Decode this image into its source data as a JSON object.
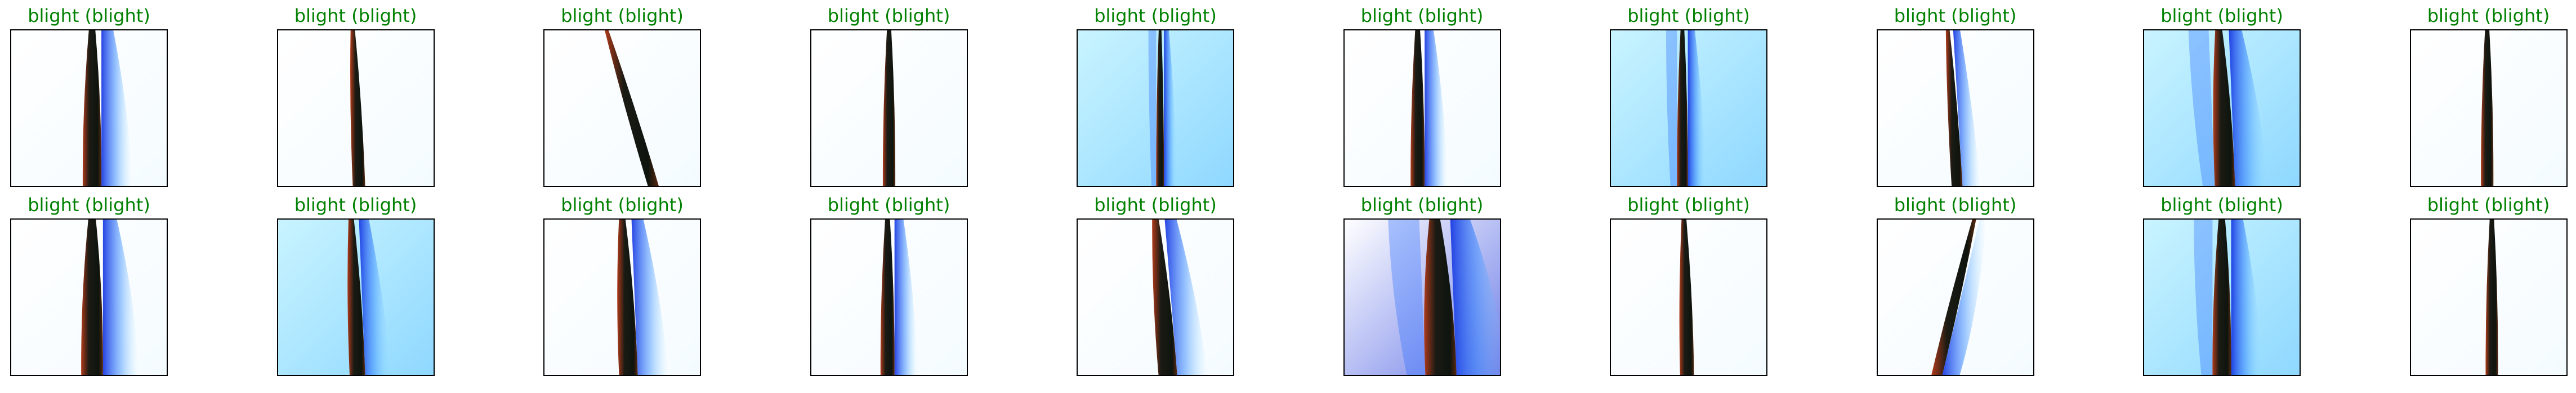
{
  "colors": {
    "correct_label": "#008000",
    "frame": "#000000"
  },
  "predictions": [
    {
      "title": "blight (blight)",
      "fill": "white",
      "leaf_x": 0.52,
      "leaf_w": 0.12,
      "lean": 0.0,
      "glow": "right"
    },
    {
      "title": "blight (blight)",
      "fill": "white",
      "leaf_x": 0.5,
      "leaf_w": 0.08,
      "lean": 0.02,
      "glow": "none"
    },
    {
      "title": "blight (blight)",
      "fill": "white",
      "leaf_x": 0.55,
      "leaf_w": 0.07,
      "lean": 0.15,
      "glow": "none"
    },
    {
      "title": "blight (blight)",
      "fill": "white",
      "leaf_x": 0.5,
      "leaf_w": 0.08,
      "lean": 0.0,
      "glow": "none"
    },
    {
      "title": "blight (blight)",
      "fill": "cyan",
      "leaf_x": 0.53,
      "leaf_w": 0.05,
      "lean": 0.0,
      "glow": "both"
    },
    {
      "title": "blight (blight)",
      "fill": "white",
      "leaf_x": 0.47,
      "leaf_w": 0.09,
      "lean": 0.0,
      "glow": "right"
    },
    {
      "title": "blight (blight)",
      "fill": "cyan",
      "leaf_x": 0.46,
      "leaf_w": 0.07,
      "lean": 0.0,
      "glow": "both"
    },
    {
      "title": "blight (blight)",
      "fill": "white",
      "leaf_x": 0.48,
      "leaf_w": 0.07,
      "lean": 0.03,
      "glow": "right"
    },
    {
      "title": "blight (blight)",
      "fill": "cyan",
      "leaf_x": 0.5,
      "leaf_w": 0.13,
      "lean": 0.02,
      "glow": "both"
    },
    {
      "title": "blight (blight)",
      "fill": "white",
      "leaf_x": 0.49,
      "leaf_w": 0.08,
      "lean": 0.0,
      "glow": "none"
    },
    {
      "title": "blight (blight)",
      "fill": "white",
      "leaf_x": 0.52,
      "leaf_w": 0.14,
      "lean": 0.0,
      "glow": "right"
    },
    {
      "title": "blight (blight)",
      "fill": "cyan",
      "leaf_x": 0.49,
      "leaf_w": 0.1,
      "lean": 0.02,
      "glow": "right"
    },
    {
      "title": "blight (blight)",
      "fill": "white",
      "leaf_x": 0.52,
      "leaf_w": 0.12,
      "lean": 0.02,
      "glow": "right"
    },
    {
      "title": "blight (blight)",
      "fill": "white",
      "leaf_x": 0.49,
      "leaf_w": 0.09,
      "lean": 0.0,
      "glow": "right"
    },
    {
      "title": "blight (blight)",
      "fill": "white",
      "leaf_x": 0.54,
      "leaf_w": 0.12,
      "lean": 0.04,
      "glow": "right"
    },
    {
      "title": "blight (blight)",
      "fill": "blue",
      "leaf_x": 0.6,
      "leaf_w": 0.2,
      "lean": 0.02,
      "glow": "both"
    },
    {
      "title": "blight (blight)",
      "fill": "white",
      "leaf_x": 0.48,
      "leaf_w": 0.09,
      "lean": 0.01,
      "glow": "none"
    },
    {
      "title": "blight (blight)",
      "fill": "white",
      "leaf_x": 0.5,
      "leaf_w": 0.07,
      "lean": -0.12,
      "glow": "right"
    },
    {
      "title": "blight (blight)",
      "fill": "cyan",
      "leaf_x": 0.5,
      "leaf_w": 0.12,
      "lean": 0.0,
      "glow": "both"
    },
    {
      "title": "blight (blight)",
      "fill": "white",
      "leaf_x": 0.52,
      "leaf_w": 0.08,
      "lean": 0.0,
      "glow": "none"
    }
  ]
}
